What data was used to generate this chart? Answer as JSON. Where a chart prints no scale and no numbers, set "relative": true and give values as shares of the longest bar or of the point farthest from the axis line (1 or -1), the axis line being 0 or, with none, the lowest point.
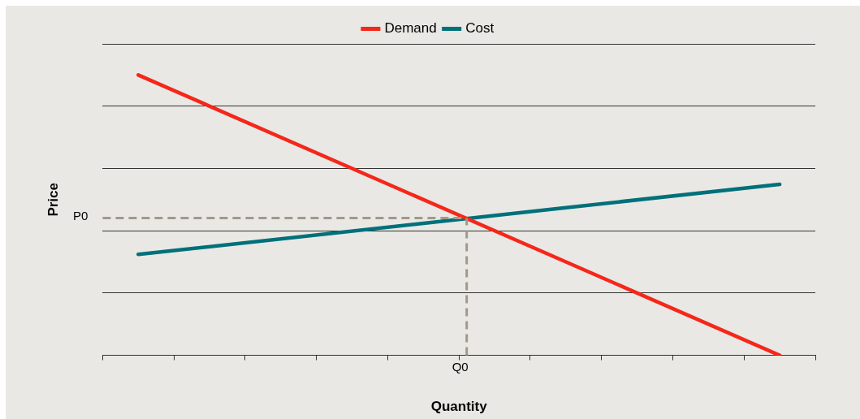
{
  "chart_data": {
    "type": "line",
    "relative": true,
    "xlabel": "Quantity",
    "ylabel": "Price",
    "categories": [
      null,
      null,
      null,
      null,
      null,
      null,
      null,
      null,
      null,
      null,
      null,
      null,
      null,
      null,
      null,
      null,
      null,
      null,
      null,
      null,
      null
    ],
    "series": [
      {
        "name": "Demand",
        "color": "#f5271b",
        "values": [
          null,
          1,
          null,
          null,
          null,
          null,
          null,
          null,
          null,
          null,
          null,
          null,
          null,
          null,
          null,
          null,
          null,
          null,
          null,
          0,
          null
        ]
      },
      {
        "name": "Cost",
        "color": "#00707a",
        "values": [
          null,
          0.36,
          null,
          null,
          null,
          null,
          null,
          null,
          null,
          null,
          null,
          null,
          null,
          null,
          null,
          null,
          null,
          null,
          null,
          0.61,
          null
        ]
      }
    ],
    "ref_lines": [
      {
        "axis": "y",
        "value": 0.49,
        "label": "P0",
        "color": "#a09a8a",
        "line_style": "dashed"
      }
    ],
    "annotations": [
      "Q0"
    ],
    "grid": "y",
    "legend": "top",
    "marker": "none",
    "line_style": "solid"
  }
}
